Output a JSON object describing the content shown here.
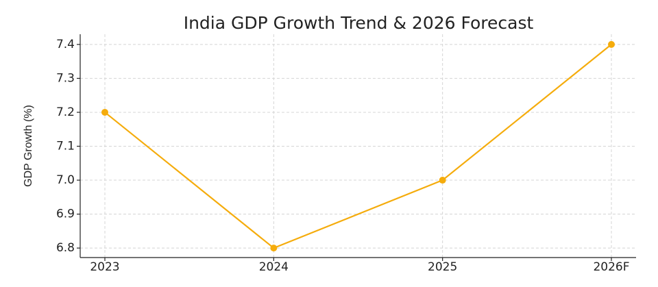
{
  "chart_data": {
    "type": "line",
    "title": "India GDP Growth Trend & 2026 Forecast",
    "y_label": "GDP Growth (%)",
    "categories": [
      "2023",
      "2024",
      "2025",
      "2026F"
    ],
    "values": [
      7.2,
      6.8,
      7.0,
      7.4
    ],
    "color": "#f5ac0c",
    "ylim": [
      6.772,
      7.43
    ],
    "yticks": [
      6.8,
      6.9,
      {
        "value": 7.0,
        "label": "7.0"
      },
      7.1,
      7.2,
      7.3,
      7.4
    ],
    "grid": true
  }
}
